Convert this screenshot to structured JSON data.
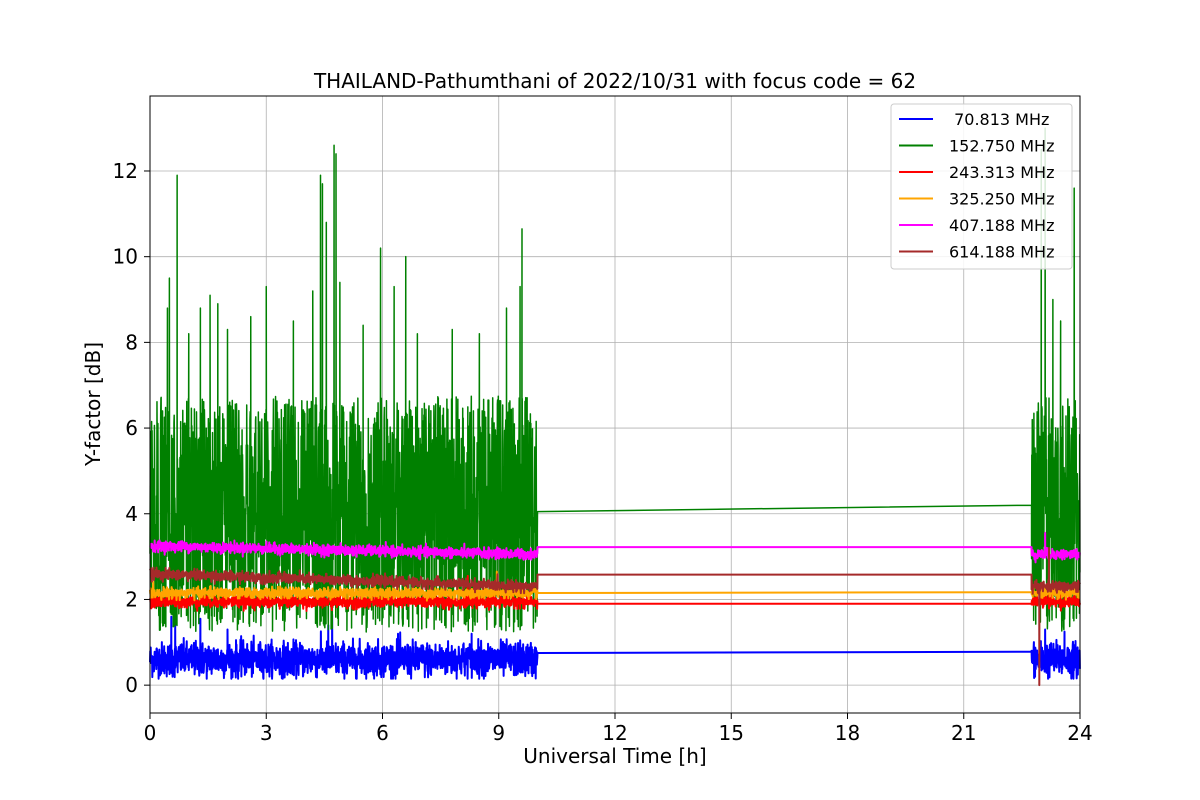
{
  "chart_data": {
    "type": "line",
    "title": "THAILAND-Pathumthani of 2022/10/31 with focus code = 62",
    "xlabel": "Universal Time [h]",
    "ylabel": "Y-factor [dB]",
    "xlim": [
      0,
      24
    ],
    "ylim": [
      -0.65,
      13.75
    ],
    "xticks": [
      0,
      3,
      6,
      9,
      12,
      15,
      18,
      21,
      24
    ],
    "yticks": [
      0,
      2,
      4,
      6,
      8,
      10,
      12
    ],
    "grid": true,
    "legend_position": "top-right",
    "data_segments": [
      [
        0,
        10
      ],
      [
        22.75,
        24
      ]
    ],
    "gap": [
      10,
      22.75
    ],
    "series": [
      {
        "name": " 70.813 MHz",
        "color": "#0000ff",
        "baseline": 0.6,
        "noise": 0.2,
        "clip_min": 0.15,
        "gap_y": [
          0.75,
          0.78
        ],
        "spikes": [
          [
            0.55,
            1.6
          ],
          [
            0.65,
            1.4
          ],
          [
            1.3,
            1.55
          ],
          [
            2.0,
            1.3
          ],
          [
            4.6,
            1.4
          ],
          [
            4.7,
            1.65
          ],
          [
            6.4,
            1.2
          ],
          [
            8.3,
            1.2
          ],
          [
            23.1,
            1.3
          ],
          [
            23.6,
            1.25
          ]
        ]
      },
      {
        "name": "152.750 MHz",
        "color": "#008000",
        "baseline": 4.0,
        "noise": 2.3,
        "clip_min": 0.05,
        "gap_y": [
          4.05,
          4.2
        ],
        "spikes": [
          [
            0.5,
            9.5
          ],
          [
            0.45,
            8.8
          ],
          [
            0.7,
            11.9
          ],
          [
            1.0,
            8.2
          ],
          [
            1.3,
            8.8
          ],
          [
            1.55,
            9.1
          ],
          [
            1.75,
            8.9
          ],
          [
            2.0,
            8.3
          ],
          [
            2.6,
            8.6
          ],
          [
            3.0,
            9.3
          ],
          [
            3.7,
            8.5
          ],
          [
            4.2,
            9.2
          ],
          [
            4.4,
            11.9
          ],
          [
            4.45,
            11.7
          ],
          [
            4.55,
            10.8
          ],
          [
            4.75,
            12.6
          ],
          [
            4.8,
            12.4
          ],
          [
            4.9,
            9.4
          ],
          [
            5.5,
            8.4
          ],
          [
            5.95,
            10.2
          ],
          [
            6.3,
            9.3
          ],
          [
            6.6,
            10.0
          ],
          [
            6.9,
            8.2
          ],
          [
            7.8,
            8.3
          ],
          [
            8.5,
            8.2
          ],
          [
            9.2,
            8.8
          ],
          [
            9.55,
            9.3
          ],
          [
            9.6,
            10.65
          ],
          [
            23.0,
            12.5
          ],
          [
            23.1,
            13.0
          ],
          [
            23.3,
            9.0
          ],
          [
            23.5,
            8.5
          ],
          [
            23.85,
            11.6
          ]
        ]
      },
      {
        "name": "243.313 MHz",
        "color": "#ff0000",
        "baseline": 1.95,
        "noise": 0.07,
        "clip_min": 0.0,
        "gap_y": [
          1.9,
          1.9
        ],
        "spikes": [
          [
            8.2,
            2.55
          ]
        ]
      },
      {
        "name": "325.250 MHz",
        "color": "#ffa500",
        "baseline": 2.15,
        "noise": 0.06,
        "clip_min": 0.0,
        "gap_y": [
          2.15,
          2.17
        ],
        "spikes": [
          [
            8.95,
            2.65
          ]
        ]
      },
      {
        "name": "407.188 MHz",
        "color": "#ff00ff",
        "baseline_start": 3.25,
        "baseline_end": 3.05,
        "noise": 0.06,
        "clip_min": 0.0,
        "gap_y": [
          3.22,
          3.22
        ],
        "spikes": [
          [
            23.1,
            3.55
          ]
        ]
      },
      {
        "name": "614.188 MHz",
        "color": "#a52a2a",
        "baseline_start": 2.6,
        "baseline_end": 2.3,
        "noise": 0.06,
        "clip_min": 0.0,
        "gap_y": [
          2.58,
          2.58
        ],
        "spikes": [
          [
            23.2,
            3.2
          ],
          [
            22.95,
            0.0
          ]
        ]
      }
    ]
  }
}
